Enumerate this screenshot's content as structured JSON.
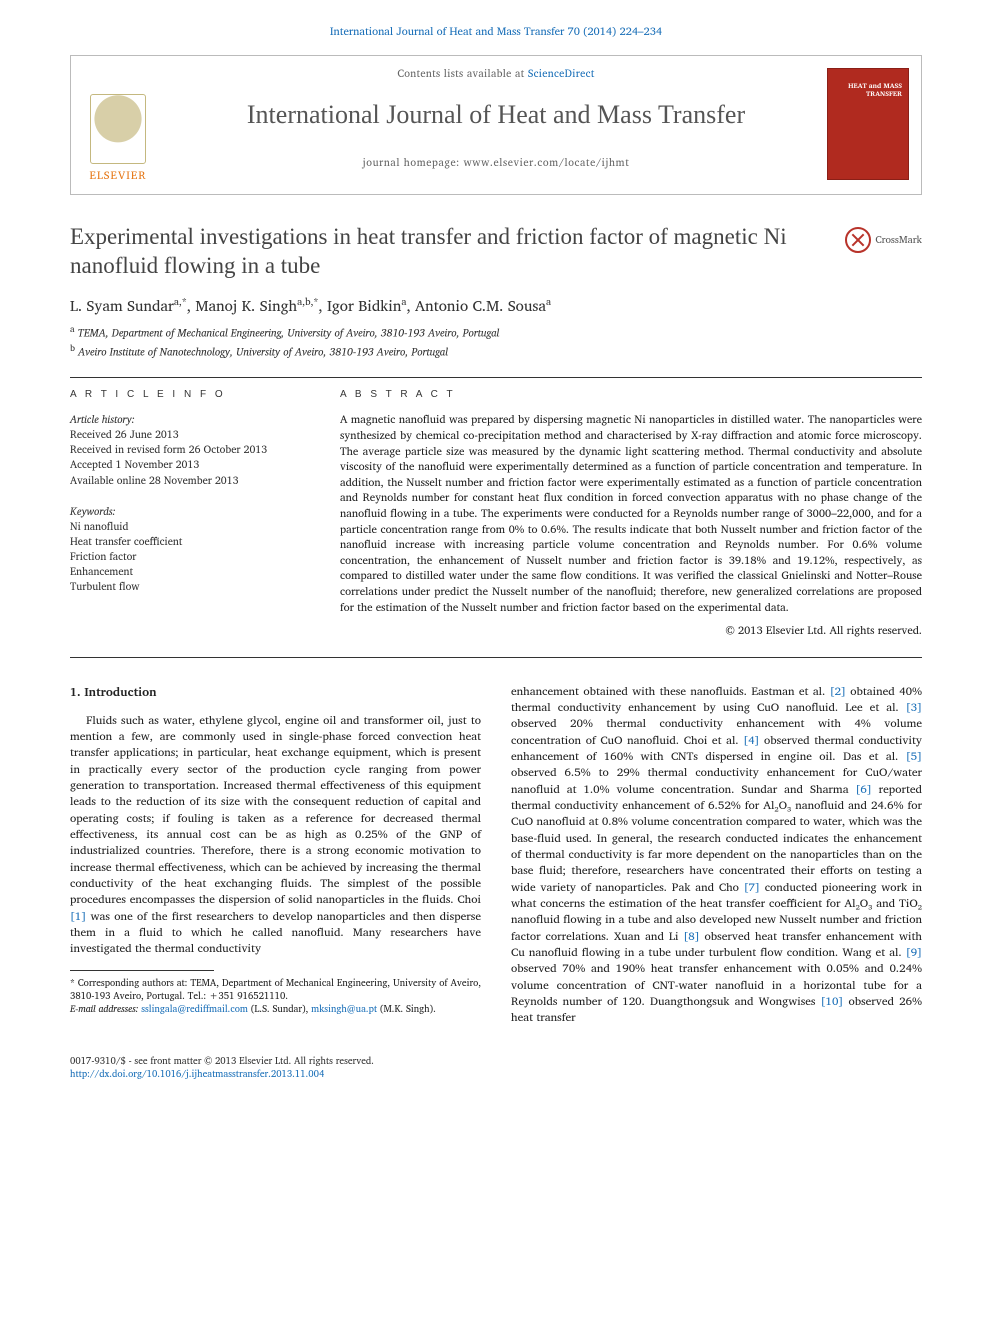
{
  "header": {
    "citation": "International Journal of Heat and Mass Transfer 70 (2014) 224–234",
    "lists_available_prefix": "Contents lists available at ",
    "lists_available_link": "ScienceDirect",
    "journal_name": "International Journal of Heat and Mass Transfer",
    "homepage": "journal homepage: www.elsevier.com/locate/ijhmt",
    "elsevier_label": "ELSEVIER",
    "cover_title": "HEAT and MASS TRANSFER"
  },
  "article": {
    "title": "Experimental investigations in heat transfer and friction factor of magnetic Ni nanofluid flowing in a tube",
    "crossmark": "CrossMark",
    "authors_html": "L. Syam Sundar<sup>a,*</sup>, Manoj K. Singh<sup>a,b,*</sup>, Igor Bidkin<sup>a</sup>, Antonio C.M. Sousa<sup>a</sup>",
    "affiliations": [
      {
        "sup": "a",
        "text": "TEMA, Department of Mechanical Engineering, University of Aveiro, 3810-193 Aveiro, Portugal"
      },
      {
        "sup": "b",
        "text": "Aveiro Institute of Nanotechnology, University of Aveiro, 3810-193 Aveiro, Portugal"
      }
    ]
  },
  "info": {
    "heading": "A R T I C L E   I N F O",
    "history_label": "Article history:",
    "history": [
      "Received 26 June 2013",
      "Received in revised form 26 October 2013",
      "Accepted 1 November 2013",
      "Available online 28 November 2013"
    ],
    "keywords_label": "Keywords:",
    "keywords": [
      "Ni nanofluid",
      "Heat transfer coefficient",
      "Friction factor",
      "Enhancement",
      "Turbulent flow"
    ]
  },
  "abstract": {
    "heading": "A B S T R A C T",
    "text": "A magnetic nanofluid was prepared by dispersing magnetic Ni nanoparticles in distilled water. The nanoparticles were synthesized by chemical co-precipitation method and characterised by X-ray diffraction and atomic force microscopy. The average particle size was measured by the dynamic light scattering method. Thermal conductivity and absolute viscosity of the nanofluid were experimentally determined as a function of particle concentration and temperature. In addition, the Nusselt number and friction factor were experimentally estimated as a function of particle concentration and Reynolds number for constant heat flux condition in forced convection apparatus with no phase change of the nanofluid flowing in a tube. The experiments were conducted for a Reynolds number range of 3000–22,000, and for a particle concentration range from 0% to 0.6%. The results indicate that both Nusselt number and friction factor of the nanofluid increase with increasing particle volume concentration and Reynolds number. For 0.6% volume concentration, the enhancement of Nusselt number and friction factor is 39.18% and 19.12%, respectively, as compared to distilled water under the same flow conditions. It was verified the classical Gnielinski and Notter–Rouse correlations under predict the Nusselt number of the nanofluid; therefore, new generalized correlations are proposed for the estimation of the Nusselt number and friction factor based on the experimental data.",
    "copyright": "© 2013 Elsevier Ltd. All rights reserved."
  },
  "body": {
    "section_heading": "1. Introduction",
    "left_para": "Fluids such as water, ethylene glycol, engine oil and transformer oil, just to mention a few, are commonly used in single-phase forced convection heat transfer applications; in particular, heat exchange equipment, which is present in practically every sector of the production cycle ranging from power generation to transportation. Increased thermal effectiveness of this equipment leads to the reduction of its size with the consequent reduction of capital and operating costs; if fouling is taken as a reference for decreased thermal effectiveness, its annual cost can be as high as 0.25% of the GNP of industrialized countries. Therefore, there is a strong economic motivation to increase thermal effectiveness, which can be achieved by increasing the thermal conductivity of the heat exchanging fluids. The simplest of the possible procedures encompasses the dispersion of solid nanoparticles in the fluids. Choi [1] was one of the first researchers to develop nanoparticles and then disperse them in a fluid to which he called nanofluid. Many researchers have investigated the thermal conductivity",
    "right_para": "enhancement obtained with these nanofluids. Eastman et al. [2] obtained 40% thermal conductivity enhancement by using CuO nanofluid. Lee et al. [3] observed 20% thermal conductivity enhancement with 4% volume concentration of CuO nanofluid. Choi et al. [4] observed thermal conductivity enhancement of 160% with CNTs dispersed in engine oil. Das et al. [5] observed 6.5% to 29% thermal conductivity enhancement for CuO/water nanofluid at 1.0% volume concentration. Sundar and Sharma [6] reported thermal conductivity enhancement of 6.52% for Al₂O₃ nanofluid and 24.6% for CuO nanofluid at 0.8% volume concentration compared to water, which was the base-fluid used. In general, the research conducted indicates the enhancement of thermal conductivity is far more dependent on the nanoparticles than on the base fluid; therefore, researchers have concentrated their efforts on testing a wide variety of nanoparticles. Pak and Cho [7] conducted pioneering work in what concerns the estimation of the heat transfer coefficient for Al₂O₃ and TiO₂ nanofluid flowing in a tube and also developed new Nusselt number and friction factor correlations. Xuan and Li [8] observed heat transfer enhancement with Cu nanofluid flowing in a tube under turbulent flow condition. Wang et al. [9] observed 70% and 190% heat transfer enhancement with 0.05% and 0.24% volume concentration of CNT-water nanofluid in a horizontal tube for a Reynolds number of 120. Duangthongsuk and Wongwises [10] observed 26% heat transfer"
  },
  "corresp": {
    "star": "* Corresponding authors at: TEMA, Department of Mechanical Engineering, University of Aveiro, 3810-193 Aveiro, Portugal. Tel.: +351 916521110.",
    "email_label": "E-mail addresses:",
    "email1": "sslingala@rediffmail.com",
    "email1_who": "(L.S. Sundar),",
    "email2": "mksingh@ua.pt",
    "email2_who": "(M.K. Singh)."
  },
  "footer": {
    "left1": "0017-9310/$ - see front matter © 2013 Elsevier Ltd. All rights reserved.",
    "left2": "http://dx.doi.org/10.1016/j.ijheatmasstransfer.2013.11.004"
  },
  "refs": {
    "r1": "[1]",
    "r2": "[2]",
    "r3": "[3]",
    "r4": "[4]",
    "r5": "[5]",
    "r6": "[6]",
    "r7": "[7]",
    "r8": "[8]",
    "r9": "[9]",
    "r10": "[10]"
  },
  "colors": {
    "link": "#1a6fb8",
    "elsevier_orange": "#e67817",
    "cover_red": "#b02a1f",
    "text": "#222222",
    "muted": "#666666",
    "rule": "#333333"
  }
}
